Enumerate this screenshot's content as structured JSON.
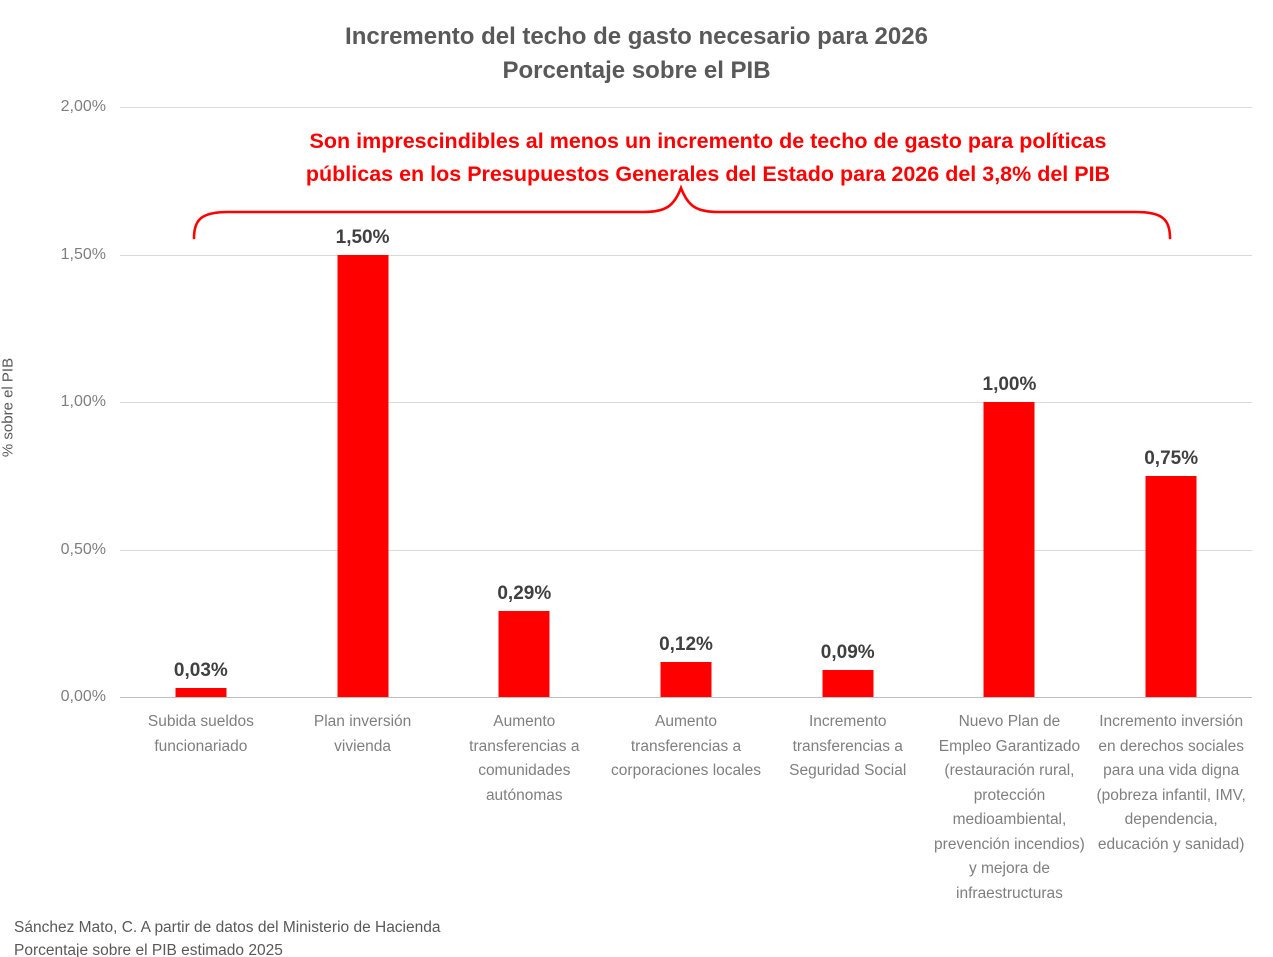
{
  "chart_data": {
    "type": "bar",
    "title": "Incremento del techo de gasto necesario para 2026",
    "subtitle": "Porcentaje sobre el PIB",
    "ylabel": "% sobre el PIB",
    "ylim": [
      0,
      2.0
    ],
    "grid": true,
    "legend": false,
    "bar_color": "#ff0000",
    "yticks": [
      {
        "value": 0.0,
        "label": "0,00%"
      },
      {
        "value": 0.5,
        "label": "0,50%"
      },
      {
        "value": 1.0,
        "label": "1,00%"
      },
      {
        "value": 1.5,
        "label": "1,50%"
      },
      {
        "value": 2.0,
        "label": "2,00%"
      }
    ],
    "annotation_lines": [
      "Son imprescindibles al menos un incremento de techo de gasto para políticas",
      "públicas en los Presupuestos Generales del Estado para 2026 del 3,8% del PIB"
    ],
    "annotation_color": "#ff0000",
    "categories": [
      "Subida sueldos funcionariado",
      "Plan inversión vivienda",
      "Aumento transferencias a comunidades autónomas",
      "Aumento transferencias a corporaciones locales",
      "Incremento transferencias a Seguridad Social",
      "Nuevo Plan de Empleo Garantizado (restauración rural, protección medioambiental, prevención incendios) y mejora de infraestructuras",
      "Incremento inversión en derechos sociales para una vida digna (pobreza infantil, IMV, dependencia, educación y sanidad)"
    ],
    "values": [
      0.03,
      1.5,
      0.29,
      0.12,
      0.09,
      1.0,
      0.75
    ],
    "value_labels": [
      "0,03%",
      "1,50%",
      "0,29%",
      "0,12%",
      "0,09%",
      "1,00%",
      "0,75%"
    ]
  },
  "footer": {
    "line1": "Sánchez Mato, C.  A partir de datos del Ministerio de Hacienda",
    "line2": "Porcentaje sobre el PIB estimado 2025"
  },
  "colors": {
    "red": "#ff0000",
    "title_text": "#595959",
    "axis_text": "#7f7f7f",
    "value_label": "#404040",
    "gridline": "#d9d9d9",
    "baseline": "#bfbfbf"
  }
}
